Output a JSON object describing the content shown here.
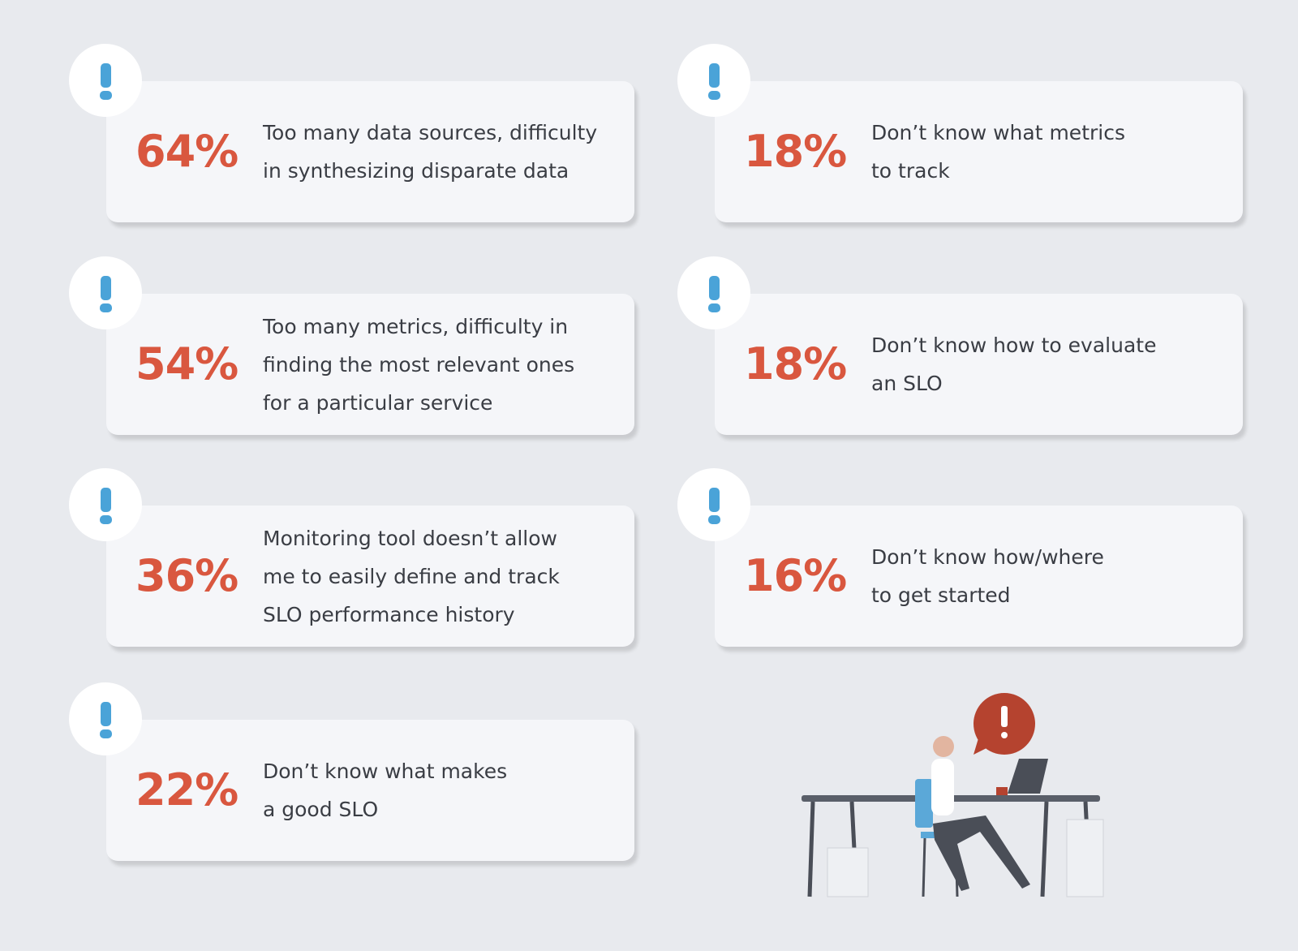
{
  "items": [
    {
      "percent": "64%",
      "lines": [
        "Too many data sources, difficulty",
        "in synthesizing disparate data"
      ]
    },
    {
      "percent": "18%",
      "lines": [
        "Don’t know what metrics",
        "to track"
      ]
    },
    {
      "percent": "54%",
      "lines": [
        "Too many metrics, difficulty in",
        "finding the most relevant ones",
        "for a particular service"
      ]
    },
    {
      "percent": "18%",
      "lines": [
        "Don’t know how to evaluate",
        "an SLO"
      ]
    },
    {
      "percent": "36%",
      "lines": [
        "Monitoring tool doesn’t allow",
        "me to easily define and track",
        "SLO performance history"
      ]
    },
    {
      "percent": "16%",
      "lines": [
        "Don’t know how/where",
        "to get started"
      ]
    },
    {
      "percent": "22%",
      "lines": [
        "Don’t know what makes",
        "a good SLO"
      ]
    }
  ]
}
